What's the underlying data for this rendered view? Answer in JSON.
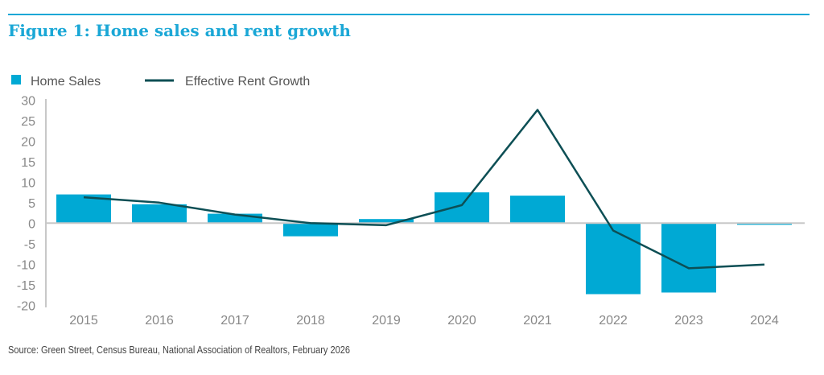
{
  "title": "Figure 1: Home sales and rent growth",
  "source": "Source: Green Street, Census Bureau, National Association of Realtors, February 2026",
  "colors": {
    "bars": "#00a9d4",
    "line": "#0d4f55",
    "title": "#1aa7d6",
    "axis": "#c8c8c8"
  },
  "chart_data": {
    "type": "bar",
    "categories": [
      "2015",
      "2016",
      "2017",
      "2018",
      "2019",
      "2020",
      "2021",
      "2022",
      "2023",
      "2024"
    ],
    "series": [
      {
        "name": "Home Sales",
        "type": "bar",
        "values": [
          7.0,
          4.6,
          2.3,
          -3.2,
          1.0,
          7.5,
          6.7,
          -17.3,
          -16.9,
          -0.4
        ]
      },
      {
        "name": "Effective Rent Growth",
        "type": "line",
        "values": [
          6.3,
          5.0,
          2.1,
          0.0,
          -0.5,
          4.4,
          27.6,
          -1.8,
          -11.0,
          -10.1
        ]
      }
    ],
    "ylim": [
      -20,
      30
    ],
    "yticks": [
      30,
      25,
      20,
      15,
      10,
      5,
      0,
      -5,
      -10,
      -15,
      -20
    ],
    "legend": "top-left",
    "grid": false
  }
}
